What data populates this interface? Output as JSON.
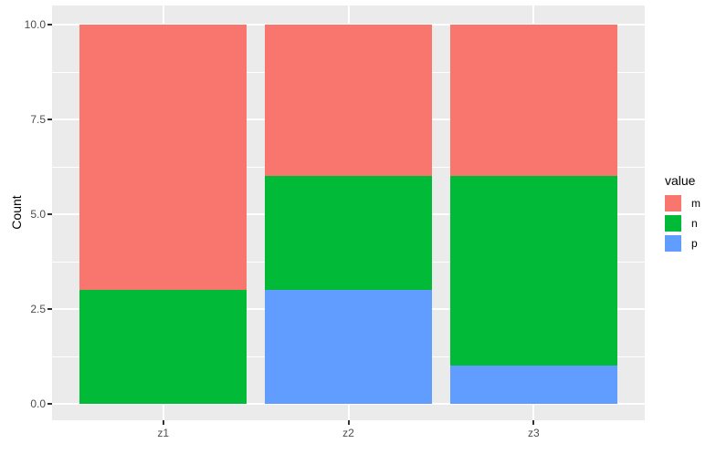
{
  "figure": {
    "background": "#FFFFFF"
  },
  "chart_data": {
    "type": "bar",
    "stacked": true,
    "title": "",
    "xlabel": "",
    "ylabel": "Count",
    "categories": [
      "z1",
      "z2",
      "z3"
    ],
    "series": [
      {
        "name": "m",
        "color": "#F8766D",
        "values": [
          7,
          4,
          4
        ]
      },
      {
        "name": "n",
        "color": "#00BA38",
        "values": [
          3,
          3,
          5
        ]
      },
      {
        "name": "p",
        "color": "#619CFF",
        "values": [
          0,
          3,
          1
        ]
      }
    ],
    "stack_order_bottom_to_top": [
      "p",
      "n",
      "m"
    ],
    "totals": [
      10,
      10,
      10
    ],
    "ylim": [
      0,
      10
    ],
    "y_ticks": [
      {
        "value": 0,
        "label": "0.0"
      },
      {
        "value": 2.5,
        "label": "2.5"
      },
      {
        "value": 5,
        "label": "5.0"
      },
      {
        "value": 7.5,
        "label": "7.5"
      },
      {
        "value": 10,
        "label": "10.0"
      }
    ],
    "grid": {
      "horizontal": "major+minor",
      "vertical": "major-at-categories",
      "color": "#FFFFFF"
    },
    "panel_background": "#EBEBEB",
    "tick_mark_color": "#333333",
    "tick_label_color": "#4D4D4D",
    "axis_title_color": "#000000",
    "legend": {
      "title": "value",
      "position": "right",
      "entries": [
        {
          "label": "m",
          "color": "#F8766D"
        },
        {
          "label": "n",
          "color": "#00BA38"
        },
        {
          "label": "p",
          "color": "#619CFF"
        }
      ]
    }
  }
}
